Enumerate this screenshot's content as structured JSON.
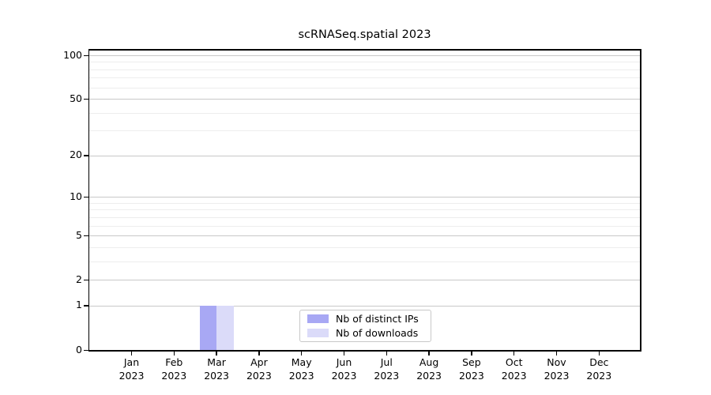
{
  "chart_data": {
    "type": "bar",
    "title": "scRNASeq.spatial 2023",
    "categories": [
      "Jan",
      "Feb",
      "Mar",
      "Apr",
      "May",
      "Jun",
      "Jul",
      "Aug",
      "Sep",
      "Oct",
      "Nov",
      "Dec"
    ],
    "category_year": "2023",
    "series": [
      {
        "name": "Nb of distinct IPs",
        "color": "#a8a8f4",
        "values": [
          0,
          0,
          1,
          0,
          0,
          0,
          0,
          0,
          0,
          0,
          0,
          0
        ]
      },
      {
        "name": "Nb of downloads",
        "color": "#dbdbf9",
        "values": [
          0,
          0,
          1,
          0,
          0,
          0,
          0,
          0,
          0,
          0,
          0,
          0
        ]
      }
    ],
    "yscale": "log1p",
    "ylim": [
      0,
      110
    ],
    "yticks": [
      0,
      1,
      2,
      5,
      10,
      20,
      50,
      100
    ],
    "minor_gridlines": [
      1,
      2,
      3,
      4,
      5,
      6,
      7,
      8,
      9,
      10,
      20,
      30,
      40,
      50,
      60,
      70,
      80,
      90,
      100
    ],
    "grid": "horizontal",
    "legend_position": "lower center"
  },
  "colors": {
    "spine": "#000000",
    "major_grid": "#c8c8c8",
    "minor_grid": "#ededed",
    "legend_border": "#c8c8c8",
    "text": "#000000"
  }
}
